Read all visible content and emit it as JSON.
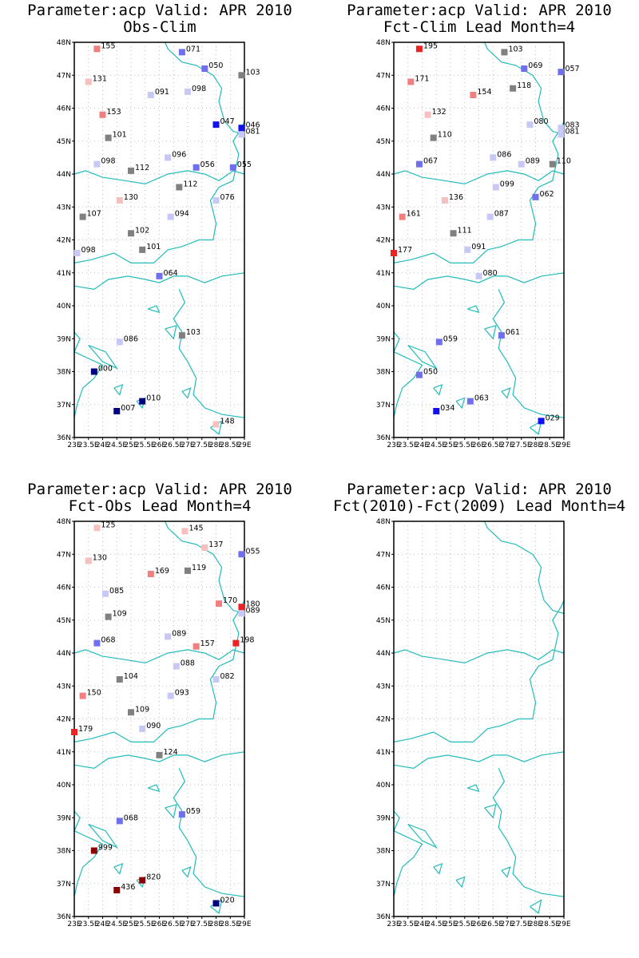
{
  "colors": {
    "coast": "#22bbbb",
    "grid": "#b0b0b0",
    "near_normal": "#808080",
    "pink_light": "#f6c0c0",
    "pink": "#f08080",
    "red": "#ee2222",
    "dark_red": "#8b0000",
    "blue_light": "#c8c8f6",
    "blue_mid": "#7070ee",
    "blue": "#1111ee",
    "navy": "#000080"
  },
  "axes": {
    "lon_labels": [
      "23E",
      "23.5E",
      "24E",
      "24.5E",
      "25E",
      "25.5E",
      "26E",
      "26.5E",
      "27E",
      "27.5E",
      "28E",
      "28.5E",
      "29E"
    ],
    "lat_labels": [
      "36N",
      "37N",
      "38N",
      "39N",
      "40N",
      "41N",
      "42N",
      "43N",
      "44N",
      "45N",
      "46N",
      "47N",
      "48N"
    ]
  },
  "chart_data": [
    {
      "type": "scatter",
      "title": "Parameter:acp Valid: APR 2010",
      "subtitle": "Obs-Clim",
      "xlim": [
        23,
        29
      ],
      "ylim": [
        36,
        48
      ],
      "grid": true,
      "points": [
        {
          "lon": 23.8,
          "lat": 47.8,
          "label": "155",
          "color": "pink"
        },
        {
          "lon": 26.8,
          "lat": 47.7,
          "label": "071",
          "color": "blue_mid"
        },
        {
          "lon": 27.6,
          "lat": 47.2,
          "label": "050",
          "color": "blue_mid"
        },
        {
          "lon": 28.9,
          "lat": 47.0,
          "label": "103",
          "color": "near_normal"
        },
        {
          "lon": 23.5,
          "lat": 46.8,
          "label": "131",
          "color": "pink_light"
        },
        {
          "lon": 25.7,
          "lat": 46.4,
          "label": "091",
          "color": "blue_light"
        },
        {
          "lon": 27.0,
          "lat": 46.5,
          "label": "098",
          "color": "blue_light"
        },
        {
          "lon": 24.0,
          "lat": 45.8,
          "label": "153",
          "color": "pink"
        },
        {
          "lon": 28.0,
          "lat": 45.5,
          "label": "047",
          "color": "blue"
        },
        {
          "lon": 28.9,
          "lat": 45.4,
          "label": "046",
          "color": "blue"
        },
        {
          "lon": 28.9,
          "lat": 45.2,
          "label": "081",
          "color": "blue_light"
        },
        {
          "lon": 24.2,
          "lat": 45.1,
          "label": "101",
          "color": "near_normal"
        },
        {
          "lon": 23.8,
          "lat": 44.3,
          "label": "098",
          "color": "blue_light"
        },
        {
          "lon": 25.0,
          "lat": 44.1,
          "label": "112",
          "color": "near_normal"
        },
        {
          "lon": 26.3,
          "lat": 44.5,
          "label": "096",
          "color": "blue_light"
        },
        {
          "lon": 27.3,
          "lat": 44.2,
          "label": "056",
          "color": "blue_mid"
        },
        {
          "lon": 28.6,
          "lat": 44.2,
          "label": "055",
          "color": "blue_mid"
        },
        {
          "lon": 26.7,
          "lat": 43.6,
          "label": "112",
          "color": "near_normal"
        },
        {
          "lon": 24.6,
          "lat": 43.2,
          "label": "130",
          "color": "pink_light"
        },
        {
          "lon": 28.0,
          "lat": 43.2,
          "label": "076",
          "color": "blue_light"
        },
        {
          "lon": 23.3,
          "lat": 42.7,
          "label": "107",
          "color": "near_normal"
        },
        {
          "lon": 26.4,
          "lat": 42.7,
          "label": "094",
          "color": "blue_light"
        },
        {
          "lon": 25.0,
          "lat": 42.2,
          "label": "102",
          "color": "near_normal"
        },
        {
          "lon": 25.4,
          "lat": 41.7,
          "label": "101",
          "color": "near_normal"
        },
        {
          "lon": 23.1,
          "lat": 41.6,
          "label": "098",
          "color": "blue_light"
        },
        {
          "lon": 26.0,
          "lat": 40.9,
          "label": "064",
          "color": "blue_mid"
        },
        {
          "lon": 26.8,
          "lat": 39.1,
          "label": "103",
          "color": "near_normal"
        },
        {
          "lon": 24.6,
          "lat": 38.9,
          "label": "086",
          "color": "blue_light"
        },
        {
          "lon": 23.7,
          "lat": 38.0,
          "label": "000",
          "color": "navy"
        },
        {
          "lon": 25.4,
          "lat": 37.1,
          "label": "010",
          "color": "navy"
        },
        {
          "lon": 24.5,
          "lat": 36.8,
          "label": "007",
          "color": "navy"
        },
        {
          "lon": 28.0,
          "lat": 36.4,
          "label": "148",
          "color": "pink_light"
        }
      ]
    },
    {
      "type": "scatter",
      "title": "Parameter:acp Valid: APR 2010",
      "subtitle": "Fct-Clim Lead Month=4",
      "xlim": [
        23,
        29
      ],
      "ylim": [
        36,
        48
      ],
      "grid": true,
      "points": [
        {
          "lon": 23.9,
          "lat": 47.8,
          "label": "195",
          "color": "red"
        },
        {
          "lon": 26.9,
          "lat": 47.7,
          "label": "103",
          "color": "near_normal"
        },
        {
          "lon": 27.6,
          "lat": 47.2,
          "label": "069",
          "color": "blue_mid"
        },
        {
          "lon": 28.9,
          "lat": 47.1,
          "label": "057",
          "color": "blue_mid"
        },
        {
          "lon": 23.6,
          "lat": 46.8,
          "label": "171",
          "color": "pink"
        },
        {
          "lon": 25.8,
          "lat": 46.4,
          "label": "154",
          "color": "pink"
        },
        {
          "lon": 27.2,
          "lat": 46.6,
          "label": "118",
          "color": "near_normal"
        },
        {
          "lon": 24.2,
          "lat": 45.8,
          "label": "132",
          "color": "pink_light"
        },
        {
          "lon": 27.8,
          "lat": 45.5,
          "label": "080",
          "color": "blue_light"
        },
        {
          "lon": 28.9,
          "lat": 45.4,
          "label": "083",
          "color": "blue_light"
        },
        {
          "lon": 28.9,
          "lat": 45.2,
          "label": "081",
          "color": "blue_light"
        },
        {
          "lon": 24.4,
          "lat": 45.1,
          "label": "110",
          "color": "near_normal"
        },
        {
          "lon": 23.9,
          "lat": 44.3,
          "label": "067",
          "color": "blue_mid"
        },
        {
          "lon": 26.5,
          "lat": 44.5,
          "label": "086",
          "color": "blue_light"
        },
        {
          "lon": 27.5,
          "lat": 44.3,
          "label": "089",
          "color": "blue_light"
        },
        {
          "lon": 28.6,
          "lat": 44.3,
          "label": "110",
          "color": "near_normal"
        },
        {
          "lon": 26.6,
          "lat": 43.6,
          "label": "099",
          "color": "blue_light"
        },
        {
          "lon": 24.8,
          "lat": 43.2,
          "label": "136",
          "color": "pink_light"
        },
        {
          "lon": 28.0,
          "lat": 43.3,
          "label": "062",
          "color": "blue_mid"
        },
        {
          "lon": 23.3,
          "lat": 42.7,
          "label": "161",
          "color": "pink"
        },
        {
          "lon": 26.4,
          "lat": 42.7,
          "label": "087",
          "color": "blue_light"
        },
        {
          "lon": 25.1,
          "lat": 42.2,
          "label": "111",
          "color": "near_normal"
        },
        {
          "lon": 25.6,
          "lat": 41.7,
          "label": "091",
          "color": "blue_light"
        },
        {
          "lon": 23.0,
          "lat": 41.6,
          "label": "177",
          "color": "red"
        },
        {
          "lon": 26.0,
          "lat": 40.9,
          "label": "080",
          "color": "blue_light"
        },
        {
          "lon": 26.8,
          "lat": 39.1,
          "label": "061",
          "color": "blue_mid"
        },
        {
          "lon": 24.6,
          "lat": 38.9,
          "label": "059",
          "color": "blue_mid"
        },
        {
          "lon": 23.9,
          "lat": 37.9,
          "label": "050",
          "color": "blue_mid"
        },
        {
          "lon": 25.7,
          "lat": 37.1,
          "label": "063",
          "color": "blue_mid"
        },
        {
          "lon": 24.5,
          "lat": 36.8,
          "label": "034",
          "color": "blue"
        },
        {
          "lon": 28.2,
          "lat": 36.5,
          "label": "029",
          "color": "blue"
        }
      ]
    },
    {
      "type": "scatter",
      "title": "Parameter:acp Valid: APR 2010",
      "subtitle": "Fct-Obs Lead Month=4",
      "xlim": [
        23,
        29
      ],
      "ylim": [
        36,
        48
      ],
      "grid": true,
      "points": [
        {
          "lon": 23.8,
          "lat": 47.8,
          "label": "125",
          "color": "pink_light"
        },
        {
          "lon": 26.9,
          "lat": 47.7,
          "label": "145",
          "color": "pink_light"
        },
        {
          "lon": 27.6,
          "lat": 47.2,
          "label": "137",
          "color": "pink_light"
        },
        {
          "lon": 28.9,
          "lat": 47.0,
          "label": "055",
          "color": "blue_mid"
        },
        {
          "lon": 23.5,
          "lat": 46.8,
          "label": "130",
          "color": "pink_light"
        },
        {
          "lon": 25.7,
          "lat": 46.4,
          "label": "169",
          "color": "pink"
        },
        {
          "lon": 27.0,
          "lat": 46.5,
          "label": "119",
          "color": "near_normal"
        },
        {
          "lon": 24.1,
          "lat": 45.8,
          "label": "085",
          "color": "blue_light"
        },
        {
          "lon": 28.1,
          "lat": 45.5,
          "label": "170",
          "color": "pink"
        },
        {
          "lon": 28.9,
          "lat": 45.4,
          "label": "180",
          "color": "red"
        },
        {
          "lon": 28.9,
          "lat": 45.2,
          "label": "089",
          "color": "blue_light"
        },
        {
          "lon": 24.2,
          "lat": 45.1,
          "label": "109",
          "color": "near_normal"
        },
        {
          "lon": 23.8,
          "lat": 44.3,
          "label": "068",
          "color": "blue_mid"
        },
        {
          "lon": 26.3,
          "lat": 44.5,
          "label": "089",
          "color": "blue_light"
        },
        {
          "lon": 27.3,
          "lat": 44.2,
          "label": "157",
          "color": "pink"
        },
        {
          "lon": 28.7,
          "lat": 44.3,
          "label": "198",
          "color": "red"
        },
        {
          "lon": 26.6,
          "lat": 43.6,
          "label": "088",
          "color": "blue_light"
        },
        {
          "lon": 24.6,
          "lat": 43.2,
          "label": "104",
          "color": "near_normal"
        },
        {
          "lon": 28.0,
          "lat": 43.2,
          "label": "082",
          "color": "blue_light"
        },
        {
          "lon": 23.3,
          "lat": 42.7,
          "label": "150",
          "color": "pink"
        },
        {
          "lon": 26.4,
          "lat": 42.7,
          "label": "093",
          "color": "blue_light"
        },
        {
          "lon": 25.0,
          "lat": 42.2,
          "label": "109",
          "color": "near_normal"
        },
        {
          "lon": 25.4,
          "lat": 41.7,
          "label": "090",
          "color": "blue_light"
        },
        {
          "lon": 23.0,
          "lat": 41.6,
          "label": "179",
          "color": "red"
        },
        {
          "lon": 26.0,
          "lat": 40.9,
          "label": "124",
          "color": "near_normal"
        },
        {
          "lon": 26.8,
          "lat": 39.1,
          "label": "059",
          "color": "blue_mid"
        },
        {
          "lon": 24.6,
          "lat": 38.9,
          "label": "068",
          "color": "blue_mid"
        },
        {
          "lon": 23.7,
          "lat": 38.0,
          "label": "999",
          "color": "dark_red"
        },
        {
          "lon": 25.4,
          "lat": 37.1,
          "label": "820",
          "color": "dark_red"
        },
        {
          "lon": 24.5,
          "lat": 36.8,
          "label": "436",
          "color": "dark_red"
        },
        {
          "lon": 28.0,
          "lat": 36.4,
          "label": "020",
          "color": "navy"
        }
      ]
    },
    {
      "type": "scatter",
      "title": "Parameter:acp Valid: APR 2010",
      "subtitle": "Fct(2010)-Fct(2009) Lead Month=4",
      "xlim": [
        23,
        29
      ],
      "ylim": [
        36,
        48
      ],
      "grid": true,
      "points": []
    }
  ]
}
